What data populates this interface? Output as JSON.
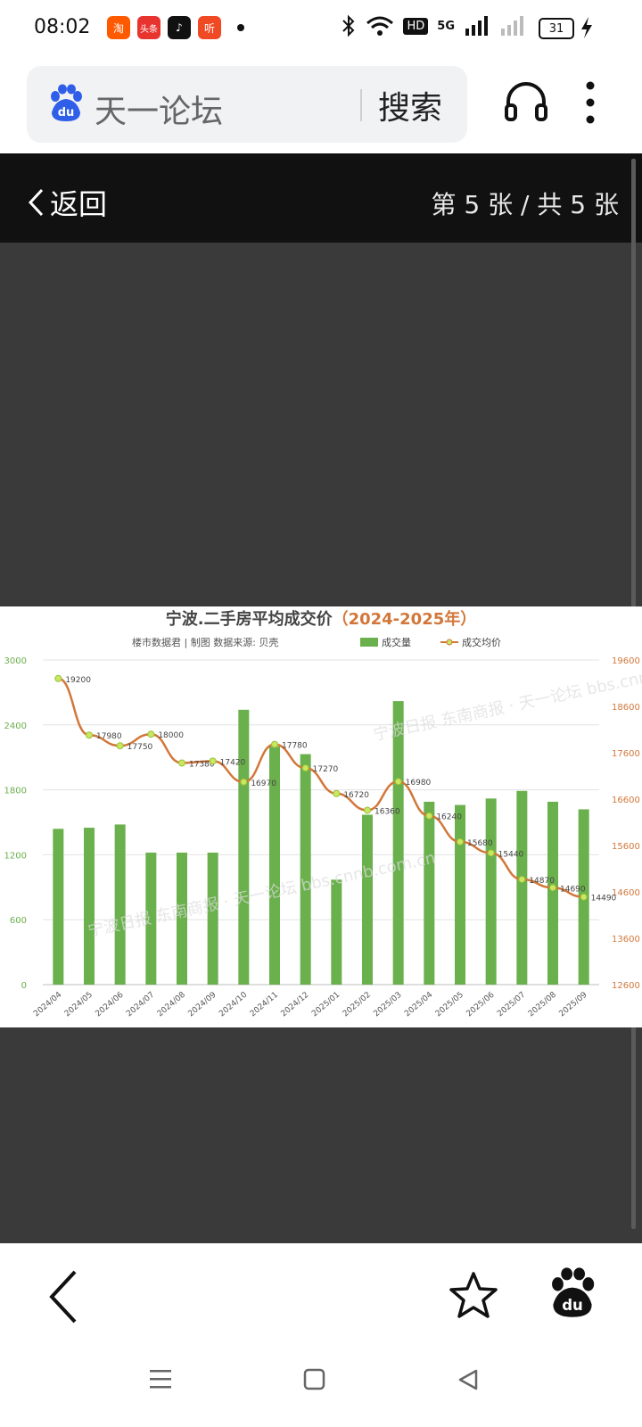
{
  "status": {
    "time": "08:02",
    "apps": [
      {
        "label": "淘",
        "color": "#ff5a00"
      },
      {
        "label": "头条",
        "color": "#e8342e"
      },
      {
        "label": "♪",
        "color": "#111111"
      },
      {
        "label": "听",
        "color": "#f04a24"
      }
    ],
    "hd_label": "HD",
    "network": "5G",
    "battery": "31"
  },
  "search": {
    "query": "天一论坛",
    "button": "搜索"
  },
  "viewer": {
    "back_label": "返回",
    "page_indicator": "第 5 张 / 共 5 张"
  },
  "chart_data": {
    "type": "bar",
    "title": "宁波.二手房平均成交价",
    "title_years": "（2024-2025年）",
    "subtitle": "楼市数据君 | 制图  数据来源: 贝壳",
    "legend": [
      "成交量",
      "成交均价"
    ],
    "legend_position": "top-right",
    "categories": [
      "2024/04",
      "2024/05",
      "2024/06",
      "2024/07",
      "2024/08",
      "2024/09",
      "2024/10",
      "2024/11",
      "2024/12",
      "2025/01",
      "2025/02",
      "2025/03",
      "2025/04",
      "2025/05",
      "2025/06",
      "2025/07",
      "2025/08",
      "2025/09"
    ],
    "series": [
      {
        "name": "成交量",
        "type": "bar",
        "axis": "left",
        "values": [
          1440,
          1450,
          1480,
          1220,
          1220,
          1220,
          2540,
          2200,
          2130,
          970,
          1570,
          2620,
          1690,
          1660,
          1720,
          1790,
          1690,
          1620
        ]
      },
      {
        "name": "成交均价",
        "type": "line",
        "axis": "right",
        "values": [
          19200,
          17980,
          17750,
          18000,
          17380,
          17420,
          16970,
          17780,
          17270,
          16720,
          16360,
          16980,
          16240,
          15680,
          15440,
          14870,
          14690,
          14490
        ]
      }
    ],
    "left_axis": {
      "ticks": [
        "0",
        "600",
        "1200",
        "1800",
        "2400",
        "3000"
      ],
      "min": 0,
      "max": 3000
    },
    "right_axis": {
      "ticks": [
        "12600",
        "13600",
        "14600",
        "15600",
        "16600",
        "17600",
        "18600",
        "19600"
      ],
      "min": 12600,
      "max": 19600
    },
    "grid": true,
    "bar_color": "#6ab04c",
    "line_color": "#d2773a",
    "point_color": "#c8e860",
    "watermark": "宁波日报 东南商报 · 天一论坛 bbs.cnnb.com.cn"
  },
  "bottom_nav": {
    "back_icon": "chevron-left-icon",
    "star_icon": "star-outline-icon",
    "baidu_icon": "baidu-paw-icon"
  }
}
